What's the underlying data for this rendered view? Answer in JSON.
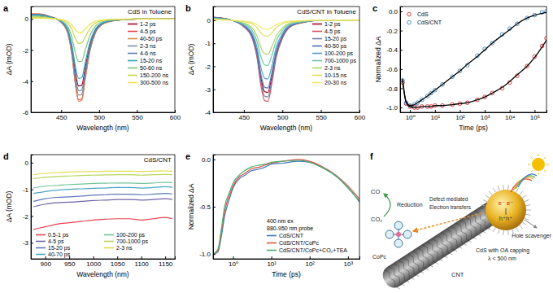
{
  "chart_data": [
    {
      "type": "line",
      "panel": "a",
      "title": "CdS in Toluene",
      "xlabel": "Wavelength (nm)",
      "ylabel": "ΔA (mOD)",
      "x": [
        410,
        420,
        435,
        450,
        458,
        464,
        469,
        473,
        477,
        482,
        488,
        495,
        505,
        520,
        550,
        600
      ],
      "xlim": [
        410,
        600
      ],
      "ylim": [
        -6,
        0.8
      ],
      "xticks": [
        450,
        500,
        550,
        600
      ],
      "yticks": [
        -6,
        -4,
        -2,
        0
      ],
      "legend": "right",
      "series": [
        {
          "name": "1-2 ps",
          "color": "#a50026",
          "values": [
            0.26,
            0.26,
            0.13,
            -0.18,
            -0.66,
            -1.85,
            -3.52,
            -4.31,
            -4.27,
            -3.08,
            -1.67,
            -0.75,
            -0.26,
            -0.09,
            0,
            0
          ]
        },
        {
          "name": "4-5 ps",
          "color": "#e8424f",
          "values": [
            0.32,
            0.32,
            0.16,
            -0.21,
            -0.8,
            -2.23,
            -4.24,
            -5.19,
            -5.14,
            -3.71,
            -2.01,
            -0.9,
            -0.32,
            -0.11,
            0,
            0
          ]
        },
        {
          "name": "40-50 ps",
          "color": "#d9864a",
          "values": [
            0.32,
            0.32,
            0.16,
            -0.22,
            -0.81,
            -2.27,
            -4.32,
            -5.29,
            -5.24,
            -3.78,
            -2.05,
            -0.92,
            -0.32,
            -0.11,
            0,
            0
          ]
        },
        {
          "name": "2-3 ns",
          "color": "#7f8fa6",
          "values": [
            0.3,
            0.3,
            0.15,
            -0.2,
            -0.75,
            -2.1,
            -4.0,
            -4.9,
            -4.85,
            -3.5,
            -1.9,
            -0.85,
            -0.3,
            -0.1,
            0,
            0
          ]
        },
        {
          "name": "4-6 ns",
          "color": "#5b7fb0",
          "values": [
            0.28,
            0.28,
            0.14,
            -0.19,
            -0.71,
            -1.97,
            -3.76,
            -4.61,
            -4.56,
            -3.29,
            -1.79,
            -0.8,
            -0.28,
            -0.09,
            0,
            0
          ]
        },
        {
          "name": "15-20 ns",
          "color": "#2fa4b8",
          "values": [
            0.23,
            0.23,
            0.12,
            -0.16,
            -0.59,
            -1.64,
            -3.12,
            -3.82,
            -3.78,
            -2.73,
            -1.48,
            -0.66,
            -0.23,
            -0.08,
            0,
            0
          ]
        },
        {
          "name": "50-60 ns",
          "color": "#7cc47c",
          "values": [
            0.17,
            0.17,
            0.08,
            -0.11,
            -0.42,
            -1.18,
            -2.24,
            -2.74,
            -2.72,
            -1.96,
            -1.06,
            -0.48,
            -0.17,
            -0.06,
            0,
            0
          ]
        },
        {
          "name": "150-200 ns",
          "color": "#c3d94e",
          "values": [
            0.1,
            0.1,
            0.05,
            -0.06,
            -0.24,
            -0.67,
            -1.28,
            -1.57,
            -1.55,
            -1.12,
            -0.61,
            -0.27,
            -0.1,
            -0.03,
            0,
            0
          ]
        },
        {
          "name": "300-500 ns",
          "color": "#f3e24a",
          "values": [
            0.05,
            0.05,
            0.03,
            -0.04,
            -0.14,
            -0.38,
            -0.72,
            -0.88,
            -0.87,
            -0.63,
            -0.34,
            -0.15,
            -0.05,
            -0.02,
            0,
            0
          ]
        }
      ]
    },
    {
      "type": "line",
      "panel": "b",
      "title": "CdS/CNT in Toluene",
      "xlabel": "Wavelength (nm)",
      "ylabel": "ΔA (mOD)",
      "x": [
        410,
        420,
        435,
        450,
        460,
        467,
        472,
        477,
        481,
        486,
        492,
        500,
        510,
        525,
        550,
        600
      ],
      "xlim": [
        410,
        600
      ],
      "ylim": [
        -4,
        0.6
      ],
      "xticks": [
        450,
        500,
        550,
        600
      ],
      "yticks": [
        -4,
        -3,
        -2,
        -1,
        0
      ],
      "legend": "right",
      "series": [
        {
          "name": "1-2 ps",
          "color": "#a50026",
          "values": [
            0.13,
            0.1,
            0,
            -0.26,
            -0.64,
            -1.44,
            -2.5,
            -3.1,
            -3.14,
            -2.5,
            -1.44,
            -0.7,
            -0.26,
            -0.1,
            0,
            0
          ]
        },
        {
          "name": "4-5 ps",
          "color": "#e0505a",
          "values": [
            0.14,
            0.11,
            0,
            -0.29,
            -0.72,
            -1.62,
            -2.81,
            -3.49,
            -3.53,
            -2.81,
            -1.62,
            -0.79,
            -0.29,
            -0.11,
            0,
            0
          ]
        },
        {
          "name": "15-20 ps",
          "color": "#6d7fa8",
          "values": [
            0.14,
            0.1,
            0,
            -0.27,
            -0.68,
            -1.53,
            -2.65,
            -3.3,
            -3.33,
            -2.65,
            -1.53,
            -0.75,
            -0.27,
            -0.1,
            0,
            0
          ]
        },
        {
          "name": "40-50 ps",
          "color": "#4f6fb0",
          "values": [
            0.12,
            0.09,
            0,
            -0.24,
            -0.6,
            -1.35,
            -2.34,
            -2.91,
            -2.94,
            -2.34,
            -1.35,
            -0.66,
            -0.24,
            -0.09,
            0,
            0
          ]
        },
        {
          "name": "100-200 ps",
          "color": "#4aa0c8",
          "values": [
            0.1,
            0.08,
            0,
            -0.21,
            -0.52,
            -1.17,
            -2.03,
            -2.52,
            -2.55,
            -2.03,
            -1.17,
            -0.57,
            -0.21,
            -0.08,
            0,
            0
          ]
        },
        {
          "name": "700-1000 ps",
          "color": "#6bc4a4",
          "values": [
            0.08,
            0.06,
            0,
            -0.16,
            -0.4,
            -0.9,
            -1.56,
            -1.94,
            -1.96,
            -1.56,
            -0.9,
            -0.44,
            -0.16,
            -0.06,
            0,
            0
          ]
        },
        {
          "name": "2-3 ns",
          "color": "#a8d86a",
          "values": [
            0.06,
            0.05,
            0,
            -0.12,
            -0.3,
            -0.68,
            -1.17,
            -1.46,
            -1.47,
            -1.17,
            -0.68,
            -0.33,
            -0.12,
            -0.05,
            0,
            0
          ]
        },
        {
          "name": "10-15 ns",
          "color": "#e0e05a",
          "values": [
            0.03,
            0.02,
            0,
            -0.06,
            -0.14,
            -0.32,
            -0.55,
            -0.68,
            -0.69,
            -0.55,
            -0.32,
            -0.15,
            -0.06,
            -0.02,
            0,
            0
          ]
        },
        {
          "name": "20-30 ns",
          "color": "#f2e86a",
          "values": [
            0.02,
            0.01,
            0,
            -0.03,
            -0.08,
            -0.18,
            -0.31,
            -0.39,
            -0.39,
            -0.31,
            -0.18,
            -0.09,
            -0.03,
            -0.01,
            0,
            0
          ]
        }
      ]
    },
    {
      "type": "scatter",
      "panel": "c",
      "xlabel": "Time (ps)",
      "ylabel": "Normalized ΔA",
      "log": "x",
      "x": [
        0.5,
        0.7,
        1,
        1.5,
        2,
        3,
        5,
        7,
        10,
        20,
        50,
        100,
        200,
        500,
        1000,
        2000,
        5000,
        10000,
        20000,
        50000,
        100000,
        200000,
        300000
      ],
      "xlim": [
        0.4,
        300000
      ],
      "ylim": [
        -1.05,
        0.05
      ],
      "xticks": [
        {
          "value": 1,
          "label": "10⁰"
        },
        {
          "value": 10,
          "label": "10¹"
        },
        {
          "value": 100,
          "label": "10²"
        },
        {
          "value": 1000,
          "label": "10³"
        },
        {
          "value": 10000,
          "label": "10⁴"
        },
        {
          "value": 100000,
          "label": "10⁵"
        }
      ],
      "yticks": [
        {
          "value": -1,
          "label": "-1.0"
        },
        -0.8,
        -0.6,
        -0.4,
        -0.2,
        {
          "value": 0,
          "label": "0.0"
        }
      ],
      "legend": "upper left",
      "series": [
        {
          "name": "CdS",
          "color": "#e0393e",
          "marker": "circle",
          "values": [
            -0.74,
            -0.96,
            -0.99,
            -1.0,
            -1.0,
            -0.99,
            -0.99,
            -0.99,
            -0.98,
            -0.98,
            -0.97,
            -0.96,
            -0.95,
            -0.92,
            -0.89,
            -0.85,
            -0.8,
            -0.74,
            -0.67,
            -0.57,
            -0.47,
            -0.36,
            -0.28
          ]
        },
        {
          "name": "CdS/CNT",
          "color": "#4a90c8",
          "marker": "circle",
          "values": [
            -0.72,
            -0.95,
            -0.98,
            -0.97,
            -0.95,
            -0.92,
            -0.88,
            -0.85,
            -0.82,
            -0.76,
            -0.68,
            -0.62,
            -0.56,
            -0.46,
            -0.39,
            -0.33,
            -0.24,
            -0.18,
            -0.13,
            -0.07,
            -0.04,
            -0.01,
            0.0
          ]
        },
        {
          "type": "line",
          "color": "#000000",
          "values": [
            -0.72,
            -0.95,
            -0.99,
            -1.0,
            -1.0,
            -0.99,
            -0.99,
            -0.99,
            -0.98,
            -0.98,
            -0.97,
            -0.96,
            -0.95,
            -0.92,
            -0.89,
            -0.85,
            -0.79,
            -0.73,
            -0.66,
            -0.57,
            -0.48,
            -0.37,
            -0.3
          ]
        },
        {
          "type": "line",
          "color": "#000000",
          "values": [
            -0.7,
            -0.94,
            -0.98,
            -0.97,
            -0.95,
            -0.92,
            -0.88,
            -0.85,
            -0.82,
            -0.76,
            -0.68,
            -0.62,
            -0.55,
            -0.47,
            -0.4,
            -0.33,
            -0.25,
            -0.19,
            -0.13,
            -0.07,
            -0.04,
            -0.02,
            -0.01
          ]
        }
      ]
    },
    {
      "type": "line",
      "panel": "d",
      "title": "CdS/CNT",
      "xlabel": "Wavelength (nm)",
      "ylabel": "ΔA (mOD)",
      "x": [
        875,
        900,
        925,
        950,
        975,
        1000,
        1025,
        1050,
        1075,
        1100,
        1125,
        1150,
        1165
      ],
      "xlim": [
        870,
        1170
      ],
      "ylim": [
        -3.6,
        0.3
      ],
      "xticks": [
        900,
        950,
        1000,
        1050,
        1100,
        1150
      ],
      "yticks": [
        -3,
        -2,
        -1,
        0
      ],
      "legend": "lower left",
      "series": [
        {
          "name": "0.5-1 ps",
          "color": "#e8424f",
          "values": [
            -2.5,
            -2.4,
            -2.3,
            -2.25,
            -2.2,
            -2.15,
            -2.12,
            -2.1,
            -2.1,
            -2.15,
            -2.1,
            -2.05,
            -2.1
          ]
        },
        {
          "name": "4-5 ps",
          "color": "#6f63a8",
          "values": [
            -1.65,
            -1.55,
            -1.5,
            -1.48,
            -1.45,
            -1.42,
            -1.4,
            -1.38,
            -1.38,
            -1.4,
            -1.38,
            -1.35,
            -1.37
          ]
        },
        {
          "name": "15-20 ps",
          "color": "#5a78b8",
          "values": [
            -1.45,
            -1.35,
            -1.3,
            -1.28,
            -1.25,
            -1.22,
            -1.2,
            -1.18,
            -1.18,
            -1.2,
            -1.18,
            -1.15,
            -1.17
          ]
        },
        {
          "name": "40-70 ps",
          "color": "#4aa6c6",
          "values": [
            -1.15,
            -1.08,
            -1.03,
            -1.0,
            -0.98,
            -0.96,
            -0.95,
            -0.93,
            -0.93,
            -0.95,
            -0.93,
            -0.9,
            -0.92
          ]
        },
        {
          "name": "100-200 ps",
          "color": "#72c49a",
          "values": [
            -0.95,
            -0.88,
            -0.85,
            -0.82,
            -0.8,
            -0.78,
            -0.77,
            -0.76,
            -0.76,
            -0.78,
            -0.76,
            -0.74,
            -0.75
          ]
        },
        {
          "name": "700-1000 ps",
          "color": "#b6d65a",
          "values": [
            -0.6,
            -0.55,
            -0.52,
            -0.5,
            -0.48,
            -0.47,
            -0.46,
            -0.45,
            -0.45,
            -0.47,
            -0.45,
            -0.44,
            -0.45
          ]
        },
        {
          "name": "2-3 ns",
          "color": "#e8dc4a",
          "values": [
            -0.45,
            -0.4,
            -0.37,
            -0.35,
            -0.34,
            -0.33,
            -0.32,
            -0.32,
            -0.32,
            -0.33,
            -0.32,
            -0.31,
            -0.32
          ]
        }
      ]
    },
    {
      "type": "line",
      "panel": "e",
      "xlabel": "Time (ps)",
      "ylabel": "Normalized ΔA",
      "log": "x",
      "annotations": [
        "400 nm ex",
        "880-950 nm probe"
      ],
      "x": [
        0.3,
        0.4,
        0.5,
        0.6,
        0.8,
        1,
        1.5,
        2,
        3,
        5,
        7,
        10,
        20,
        50,
        100,
        200,
        500,
        1000,
        1500,
        2000
      ],
      "xlim": [
        0.3,
        2000
      ],
      "ylim": [
        -1.05,
        0.05
      ],
      "xticks": [
        {
          "value": 1,
          "label": "10⁰"
        },
        {
          "value": 10,
          "label": "10¹"
        },
        {
          "value": 100,
          "label": "10²"
        },
        {
          "value": 1000,
          "label": "10³"
        }
      ],
      "yticks": [
        {
          "value": -1,
          "label": "-1.0"
        },
        -0.5,
        {
          "value": 0,
          "label": "0.0"
        }
      ],
      "legend": "lower right",
      "series": [
        {
          "name": "CdS/CNT",
          "color": "#3a78c0",
          "values": [
            -1.0,
            -0.98,
            -0.8,
            -0.6,
            -0.42,
            -0.3,
            -0.2,
            -0.17,
            -0.12,
            -0.1,
            -0.08,
            -0.05,
            -0.04,
            -0.02,
            -0.03,
            -0.08,
            -0.18,
            -0.3,
            -0.38,
            -0.45
          ]
        },
        {
          "name": "CdS/CNT/CoPc",
          "color": "#e0504a",
          "values": [
            -1.0,
            -0.97,
            -0.75,
            -0.55,
            -0.38,
            -0.28,
            -0.18,
            -0.15,
            -0.1,
            -0.08,
            -0.06,
            -0.04,
            -0.02,
            0.0,
            -0.02,
            -0.07,
            -0.17,
            -0.28,
            -0.36,
            -0.42
          ]
        },
        {
          "name": "CdS/CNT/CoPc+CO₂+TEA",
          "color": "#4caf6a",
          "values": [
            -1.0,
            -0.95,
            -0.72,
            -0.5,
            -0.35,
            -0.25,
            -0.16,
            -0.12,
            -0.08,
            -0.06,
            -0.05,
            -0.03,
            -0.02,
            -0.01,
            -0.03,
            -0.08,
            -0.18,
            -0.3,
            -0.38,
            -0.44
          ]
        }
      ]
    }
  ],
  "diagram": {
    "panel": "f",
    "co": "CO",
    "reduction": "Reduction",
    "co2": "CO₂",
    "electron_transfers": "Electron transfers",
    "defect_mediated": "Defect mediated",
    "copc": "CoPc",
    "cnt": "CNT",
    "cds": "CdS with OA capping",
    "wavelength": "λ < 500 nm",
    "hole_scavenger": "Hole scavenger",
    "electrons": "e⁻ e⁻",
    "holes": "h⁺h⁺"
  }
}
